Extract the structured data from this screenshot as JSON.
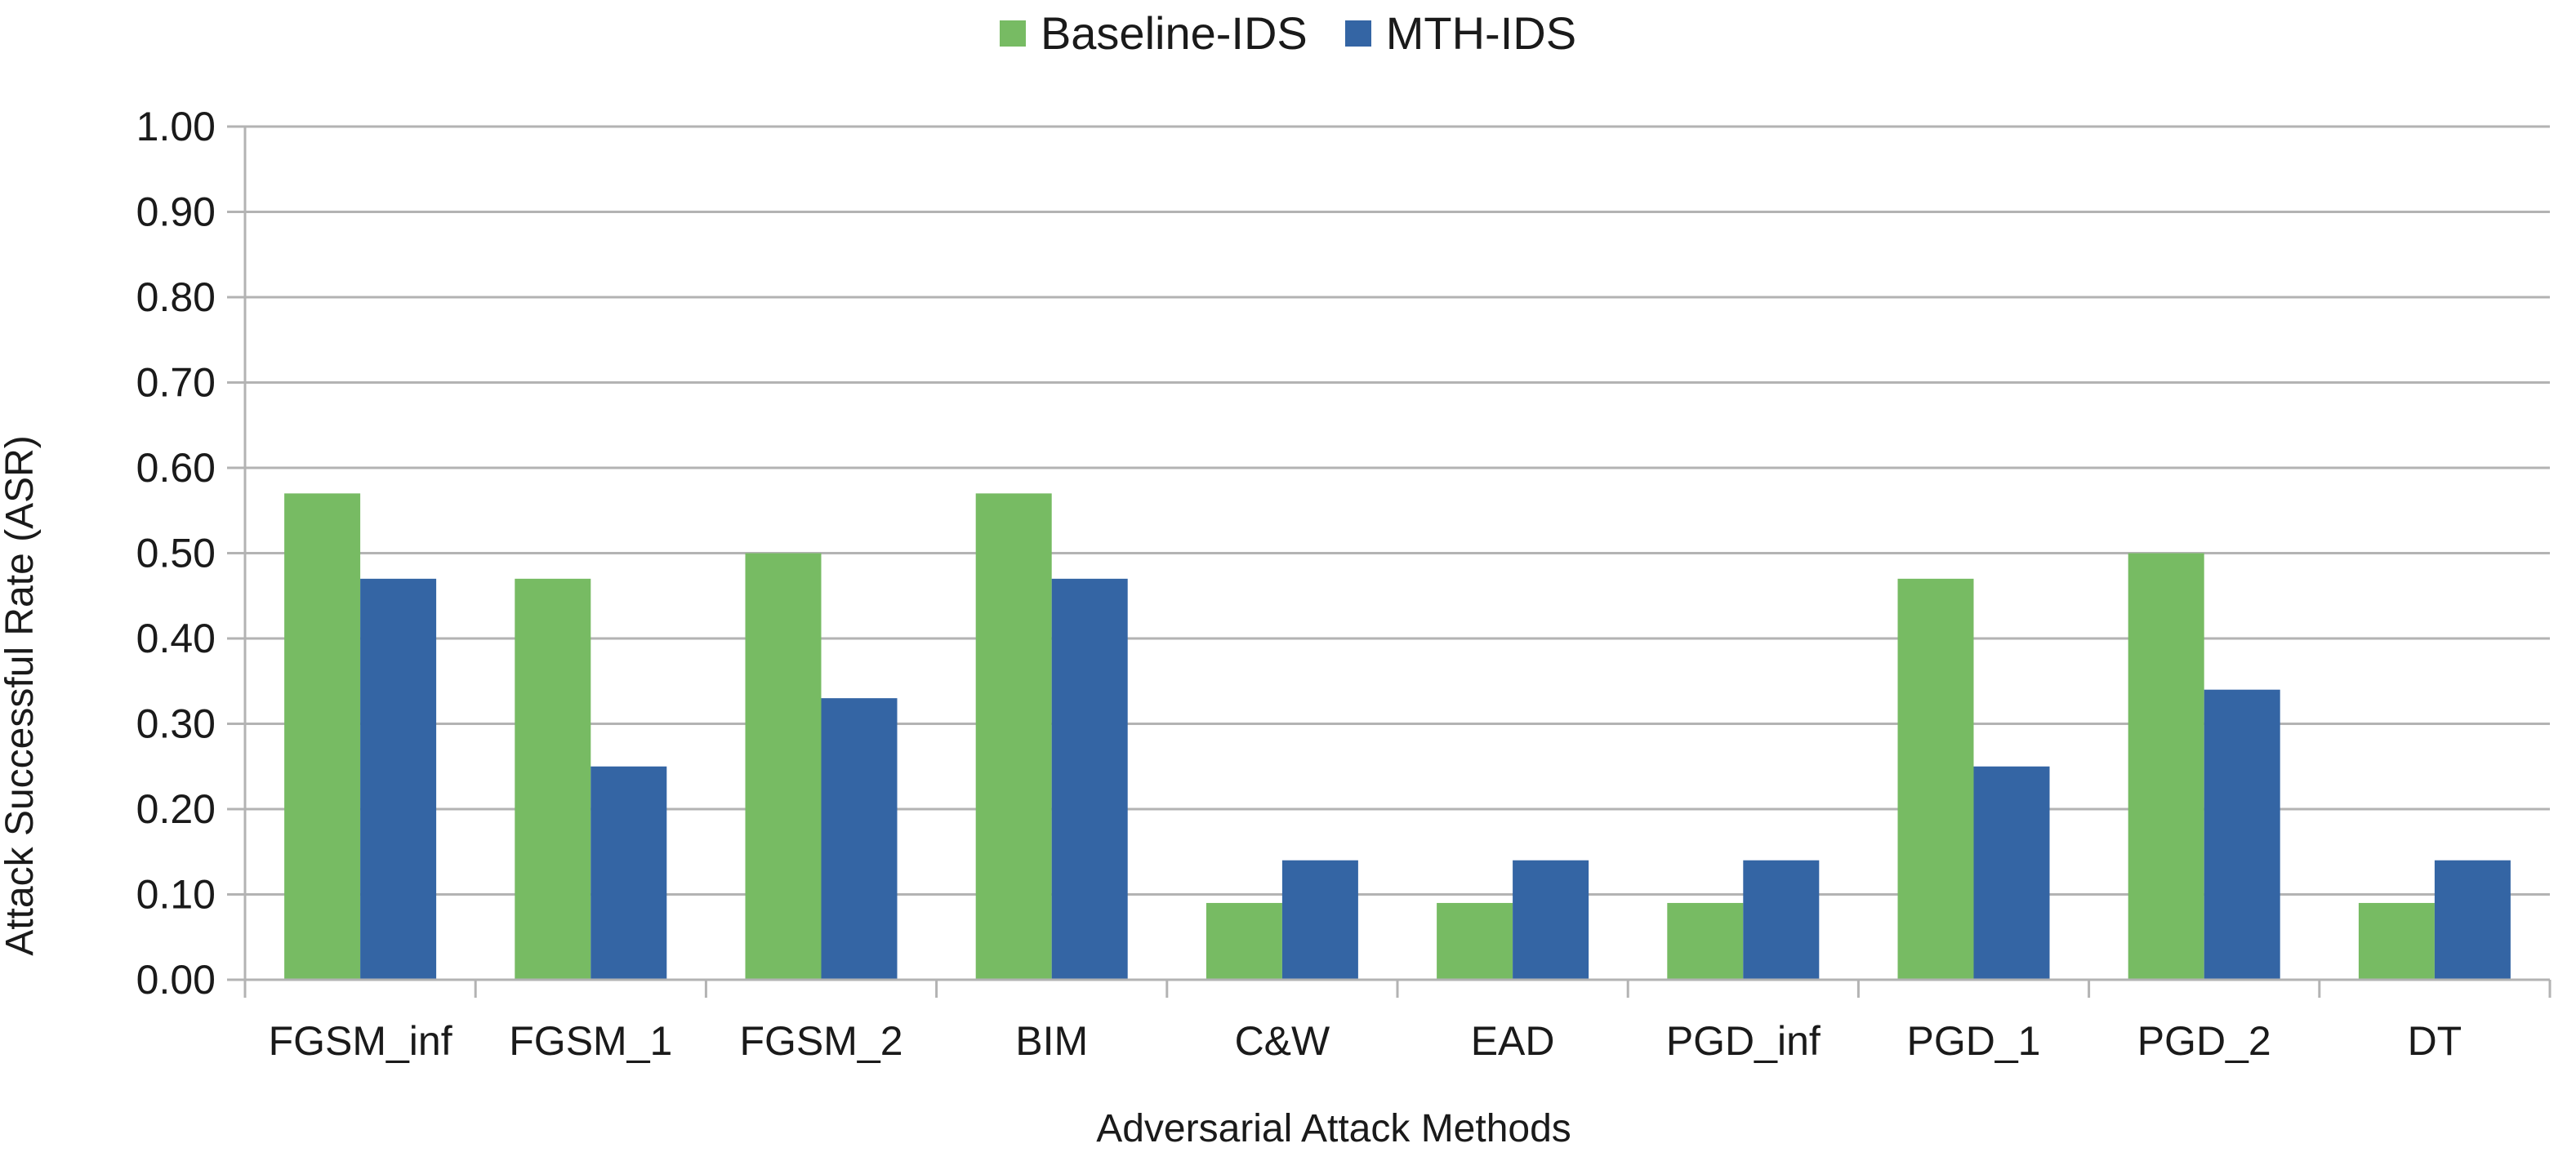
{
  "chart_data": {
    "type": "bar",
    "title": "",
    "xlabel": "Adversarial Attack Methods",
    "ylabel": "Attack Successful Rate (ASR)",
    "ylim": [
      0,
      1
    ],
    "yticks": [
      "0.00",
      "0.10",
      "0.20",
      "0.30",
      "0.40",
      "0.50",
      "0.60",
      "0.70",
      "0.80",
      "0.90",
      "1.00"
    ],
    "grid": true,
    "legend_position": "top-center",
    "categories": [
      "FGSM_inf",
      "FGSM_1",
      "FGSM_2",
      "BIM",
      "C&W",
      "EAD",
      "PGD_inf",
      "PGD_1",
      "PGD_2",
      "DT"
    ],
    "series": [
      {
        "name": "Baseline-IDS",
        "color": "#77bb63",
        "values": [
          0.57,
          0.47,
          0.5,
          0.57,
          0.09,
          0.09,
          0.09,
          0.47,
          0.5,
          0.09
        ]
      },
      {
        "name": "MTH-IDS",
        "color": "#3465a4",
        "values": [
          0.47,
          0.25,
          0.33,
          0.47,
          0.14,
          0.14,
          0.14,
          0.25,
          0.34,
          0.14
        ]
      }
    ]
  }
}
